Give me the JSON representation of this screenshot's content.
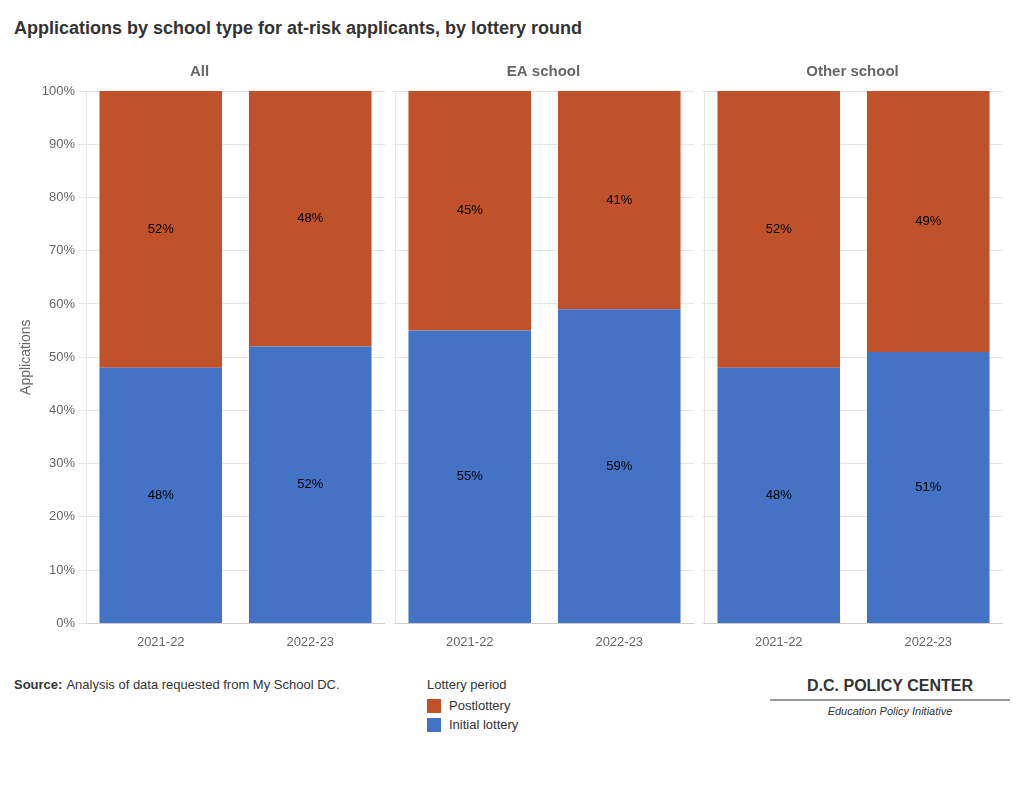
{
  "title": "Applications by school type for at-risk applicants, by lottery round",
  "legend": "bottom",
  "legend_title": "Lottery period",
  "annotations": [
    "Source:",
    "Analysis of data requested from My School DC.",
    "D.C. POLICY CENTER",
    "Education Policy Initiative"
  ],
  "chart_data": [
    {
      "type": "bar",
      "title": "All",
      "categories": [
        "2021-22",
        "2022-23"
      ],
      "series": [
        {
          "name": "Initial lottery",
          "color": "#4472C4",
          "values": [
            48,
            52
          ],
          "value_labels": [
            "48%",
            "52%"
          ]
        },
        {
          "name": "Postlottery",
          "color": "#C0522B",
          "values": [
            52,
            48
          ],
          "value_labels": [
            "52%",
            "48%"
          ]
        }
      ],
      "stacked": true,
      "data_labels": true,
      "ylabel": "Applications",
      "ylim": [
        0,
        100
      ],
      "yticks": [
        {
          "value": 0,
          "label": "0%"
        },
        {
          "value": 10,
          "label": "10%"
        },
        {
          "value": 20,
          "label": "20%"
        },
        {
          "value": 30,
          "label": "30%"
        },
        {
          "value": 40,
          "label": "40%"
        },
        {
          "value": 50,
          "label": "50%"
        },
        {
          "value": 60,
          "label": "60%"
        },
        {
          "value": 70,
          "label": "70%"
        },
        {
          "value": 80,
          "label": "80%"
        },
        {
          "value": 90,
          "label": "90%"
        },
        {
          "value": 100,
          "label": "100%"
        }
      ],
      "grid": true
    },
    {
      "type": "bar",
      "title": "EA school",
      "categories": [
        "2021-22",
        "2022-23"
      ],
      "series": [
        {
          "name": "Initial lottery",
          "color": "#4472C4",
          "values": [
            55,
            59
          ],
          "value_labels": [
            "55%",
            "59%"
          ]
        },
        {
          "name": "Postlottery",
          "color": "#C0522B",
          "values": [
            45,
            41
          ],
          "value_labels": [
            "45%",
            "41%"
          ]
        }
      ],
      "stacked": true,
      "data_labels": true,
      "tick_labels": "x",
      "ylim": [
        0,
        100
      ],
      "yticks": [
        0,
        10,
        20,
        30,
        40,
        50,
        60,
        70,
        80,
        90,
        100
      ],
      "grid": true
    },
    {
      "type": "bar",
      "title": "Other school",
      "categories": [
        "2021-22",
        "2022-23"
      ],
      "series": [
        {
          "name": "Initial lottery",
          "color": "#4472C4",
          "values": [
            48,
            51
          ],
          "value_labels": [
            "48%",
            "51%"
          ]
        },
        {
          "name": "Postlottery",
          "color": "#C0522B",
          "values": [
            52,
            49
          ],
          "value_labels": [
            "52%",
            "49%"
          ]
        }
      ],
      "stacked": true,
      "data_labels": true,
      "tick_labels": "x",
      "ylim": [
        0,
        100
      ],
      "yticks": [
        0,
        10,
        20,
        30,
        40,
        50,
        60,
        70,
        80,
        90,
        100
      ],
      "grid": true
    }
  ]
}
